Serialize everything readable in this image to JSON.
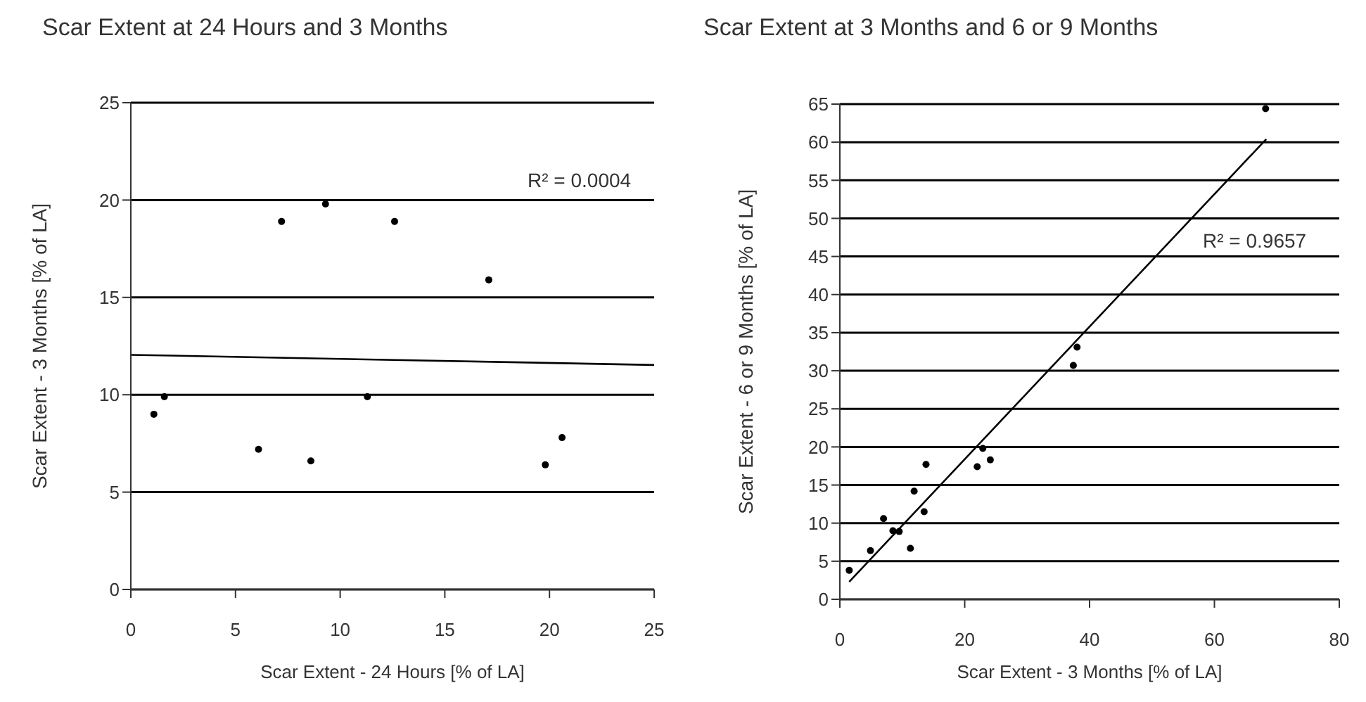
{
  "chart_data": [
    {
      "type": "scatter",
      "title": "Scar Extent at 24 Hours and 3 Months",
      "xlabel": "Scar Extent - 24 Hours [% of LA]",
      "ylabel": "Scar Extent - 3 Months [% of LA]",
      "xlim": [
        0,
        25
      ],
      "xticks": [
        0,
        5,
        10,
        15,
        20,
        25
      ],
      "ylim": [
        0,
        25
      ],
      "yticks": [
        0,
        5,
        10,
        15,
        20,
        25
      ],
      "grid": "y",
      "series": [
        {
          "marker": "circle",
          "color": "#000000",
          "x": [
            1.1,
            1.6,
            6.1,
            7.2,
            8.6,
            9.3,
            11.3,
            12.6,
            17.1,
            19.8,
            20.6
          ],
          "values": [
            9.0,
            9.9,
            7.2,
            18.9,
            6.6,
            19.8,
            9.9,
            18.9,
            15.9,
            6.4,
            7.8
          ]
        },
        {
          "type": "line",
          "marker": "none",
          "color": "#000000",
          "x": [
            0,
            25
          ],
          "values": [
            12.05,
            11.53
          ]
        }
      ],
      "annotations": [
        "R² = 0.0004"
      ]
    },
    {
      "type": "scatter",
      "title": "Scar Extent at 3 Months and 6 or 9 Months",
      "xlabel": "Scar Extent - 3 Months [% of LA]",
      "ylabel": "Scar Extent - 6 or 9 Months [% of LA]",
      "xlim": [
        0,
        80
      ],
      "xticks": [
        0,
        20,
        40,
        60,
        80
      ],
      "ylim": [
        0,
        65
      ],
      "yticks": [
        0,
        5,
        10,
        15,
        20,
        25,
        30,
        35,
        40,
        45,
        50,
        55,
        60,
        65
      ],
      "grid": "y",
      "series": [
        {
          "marker": "circle",
          "color": "#000000",
          "x": [
            1.5,
            4.9,
            7.0,
            8.5,
            9.5,
            11.3,
            11.9,
            13.5,
            13.8,
            22.0,
            22.9,
            24.1,
            37.4,
            38.0,
            68.2
          ],
          "values": [
            3.8,
            6.4,
            10.6,
            9.0,
            8.9,
            6.7,
            14.2,
            11.5,
            17.7,
            17.4,
            19.8,
            18.3,
            30.7,
            33.1,
            64.4
          ]
        },
        {
          "type": "line",
          "marker": "none",
          "color": "#000000",
          "x": [
            1.5,
            68.3
          ],
          "values": [
            2.3,
            60.4
          ]
        }
      ],
      "annotations": [
        "R² = 0.9657"
      ]
    }
  ]
}
